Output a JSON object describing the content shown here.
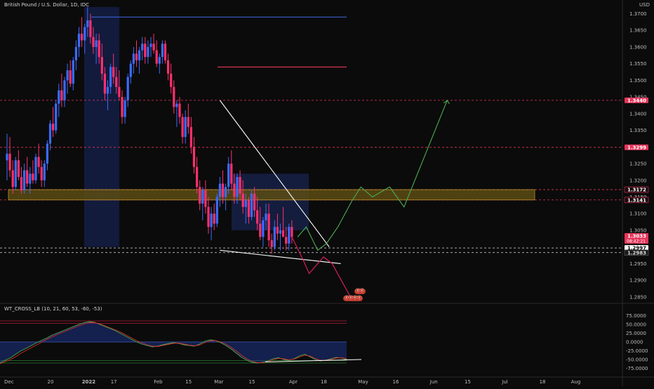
{
  "header": {
    "title": "British Pound / U.S. Dollar, 1D, IDC",
    "currency": "USD"
  },
  "indicator": {
    "title": "WT_CROSS_LB (10, 21, 60, 53, -60, -53)"
  },
  "colors": {
    "bg": "#0b0b0b",
    "up": "#3b6bff",
    "down": "#ff2f6e",
    "neutral": "#e7e352",
    "accent_green": "#4caf50",
    "accent_red": "#e91e63",
    "level_red": "#e5355a",
    "zone_fill": "#5b4c14",
    "white": "#ffffff"
  },
  "price_axis": {
    "ticks": [
      "1.3700",
      "1.3650",
      "1.3600",
      "1.3550",
      "1.3500",
      "1.3450",
      "1.3400",
      "1.3350",
      "1.3300",
      "1.3250",
      "1.3200",
      "1.3150",
      "1.3100",
      "1.3050",
      "1.3000",
      "1.2950",
      "1.2900",
      "1.2850"
    ],
    "min": 1.2835,
    "max": 1.372,
    "labels": [
      {
        "value": 1.344,
        "text": "1.3440",
        "style": "red"
      },
      {
        "value": 1.3299,
        "text": "1.3299",
        "style": "red"
      },
      {
        "value": 1.3172,
        "text": "1.3172",
        "style": "red-outline"
      },
      {
        "value": 1.3141,
        "text": "1.3141",
        "style": "red-outline"
      },
      {
        "value": 1.3033,
        "text": "1.3033",
        "style": "red",
        "sub": "08:42:21"
      },
      {
        "value": 1.2997,
        "text": "1.2997",
        "style": "white"
      },
      {
        "value": 1.2983,
        "text": "1.2983",
        "style": "dark"
      }
    ]
  },
  "osc_axis": {
    "ticks": [
      "75.0000",
      "50.0000",
      "25.0000",
      "0.0000",
      "-25.0000",
      "-50.0000",
      "-75.0000"
    ],
    "min": -82,
    "max": 82
  },
  "time_axis": {
    "labels": [
      {
        "day": 0,
        "text": "Dec"
      },
      {
        "day": 15,
        "text": "20"
      },
      {
        "day": 27,
        "text": "2022"
      },
      {
        "day": 37,
        "text": "17"
      },
      {
        "day": 52,
        "text": "Feb"
      },
      {
        "day": 63,
        "text": "15"
      },
      {
        "day": 73,
        "text": "Mar"
      },
      {
        "day": 85,
        "text": "15"
      },
      {
        "day": 99,
        "text": "Apr"
      },
      {
        "day": 110,
        "text": "18"
      },
      {
        "day": 123,
        "text": "May"
      },
      {
        "day": 135,
        "text": "16"
      },
      {
        "day": 148,
        "text": "Jun"
      },
      {
        "day": 160,
        "text": "15"
      },
      {
        "day": 173,
        "text": "Jul"
      },
      {
        "day": 186,
        "text": "18"
      },
      {
        "day": 197,
        "text": "Aug"
      }
    ]
  },
  "chart_data": {
    "type": "candlestick",
    "levels": [
      1.344,
      1.3299,
      1.3172,
      1.3141
    ],
    "zone": [
      1.3141,
      1.3172
    ],
    "support_lines": [
      1.2997,
      1.2983
    ],
    "candles": [
      [
        1.326,
        1.334,
        1.32,
        1.328
      ],
      [
        1.328,
        1.333,
        1.321,
        1.323
      ],
      [
        1.323,
        1.326,
        1.316,
        1.318
      ],
      [
        1.318,
        1.327,
        1.317,
        1.326
      ],
      [
        1.326,
        1.329,
        1.32,
        1.321
      ],
      [
        1.321,
        1.324,
        1.316,
        1.317
      ],
      [
        1.317,
        1.325,
        1.316,
        1.323
      ],
      [
        1.323,
        1.327,
        1.318,
        1.319
      ],
      [
        1.319,
        1.324,
        1.316,
        1.322
      ],
      [
        1.322,
        1.326,
        1.319,
        1.32
      ],
      [
        1.32,
        1.328,
        1.319,
        1.327
      ],
      [
        1.327,
        1.331,
        1.322,
        1.324
      ],
      [
        1.324,
        1.326,
        1.318,
        1.32
      ],
      [
        1.32,
        1.326,
        1.318,
        1.325
      ],
      [
        1.325,
        1.332,
        1.323,
        1.331
      ],
      [
        1.331,
        1.338,
        1.329,
        1.337
      ],
      [
        1.337,
        1.342,
        1.333,
        1.335
      ],
      [
        1.335,
        1.344,
        1.334,
        1.343
      ],
      [
        1.343,
        1.349,
        1.339,
        1.347
      ],
      [
        1.347,
        1.352,
        1.342,
        1.344
      ],
      [
        1.344,
        1.351,
        1.342,
        1.35
      ],
      [
        1.35,
        1.355,
        1.346,
        1.353
      ],
      [
        1.353,
        1.356,
        1.348,
        1.349
      ],
      [
        1.349,
        1.357,
        1.347,
        1.356
      ],
      [
        1.356,
        1.362,
        1.353,
        1.36
      ],
      [
        1.36,
        1.366,
        1.357,
        1.364
      ],
      [
        1.364,
        1.369,
        1.36,
        1.362
      ],
      [
        1.362,
        1.367,
        1.358,
        1.366
      ],
      [
        1.366,
        1.372,
        1.363,
        1.368
      ],
      [
        1.368,
        1.37,
        1.361,
        1.363
      ],
      [
        1.363,
        1.366,
        1.358,
        1.36
      ],
      [
        1.36,
        1.364,
        1.355,
        1.362
      ],
      [
        1.362,
        1.364,
        1.355,
        1.357
      ],
      [
        1.357,
        1.361,
        1.35,
        1.352
      ],
      [
        1.352,
        1.354,
        1.344,
        1.346
      ],
      [
        1.346,
        1.35,
        1.341,
        1.348
      ],
      [
        1.348,
        1.355,
        1.346,
        1.354
      ],
      [
        1.354,
        1.358,
        1.349,
        1.351
      ],
      [
        1.351,
        1.354,
        1.346,
        1.348
      ],
      [
        1.348,
        1.353,
        1.344,
        1.345
      ],
      [
        1.345,
        1.347,
        1.337,
        1.339
      ],
      [
        1.339,
        1.345,
        1.337,
        1.344
      ],
      [
        1.344,
        1.352,
        1.342,
        1.351
      ],
      [
        1.351,
        1.356,
        1.349,
        1.355
      ],
      [
        1.355,
        1.36,
        1.352,
        1.358
      ],
      [
        1.358,
        1.362,
        1.354,
        1.356
      ],
      [
        1.356,
        1.36,
        1.352,
        1.359
      ],
      [
        1.359,
        1.363,
        1.356,
        1.361
      ],
      [
        1.361,
        1.363,
        1.355,
        1.357
      ],
      [
        1.357,
        1.362,
        1.355,
        1.36
      ],
      [
        1.36,
        1.363,
        1.357,
        1.361
      ],
      [
        1.361,
        1.364,
        1.358,
        1.359
      ],
      [
        1.359,
        1.362,
        1.354,
        1.355
      ],
      [
        1.355,
        1.358,
        1.352,
        1.357
      ],
      [
        1.357,
        1.362,
        1.355,
        1.361
      ],
      [
        1.361,
        1.362,
        1.355,
        1.356
      ],
      [
        1.356,
        1.358,
        1.35,
        1.352
      ],
      [
        1.352,
        1.355,
        1.346,
        1.348
      ],
      [
        1.348,
        1.35,
        1.34,
        1.342
      ],
      [
        1.342,
        1.344,
        1.336,
        1.343
      ],
      [
        1.343,
        1.345,
        1.337,
        1.339
      ],
      [
        1.339,
        1.34,
        1.331,
        1.333
      ],
      [
        1.333,
        1.341,
        1.331,
        1.339
      ],
      [
        1.339,
        1.343,
        1.334,
        1.336
      ],
      [
        1.336,
        1.339,
        1.328,
        1.33
      ],
      [
        1.33,
        1.333,
        1.322,
        1.324
      ],
      [
        1.324,
        1.327,
        1.316,
        1.318
      ],
      [
        1.318,
        1.32,
        1.311,
        1.313
      ],
      [
        1.313,
        1.318,
        1.308,
        1.317
      ],
      [
        1.317,
        1.32,
        1.31,
        1.312
      ],
      [
        1.312,
        1.315,
        1.304,
        1.306
      ],
      [
        1.306,
        1.312,
        1.302,
        1.31
      ],
      [
        1.31,
        1.313,
        1.305,
        1.307
      ],
      [
        1.307,
        1.316,
        1.306,
        1.315
      ],
      [
        1.315,
        1.321,
        1.312,
        1.319
      ],
      [
        1.319,
        1.323,
        1.313,
        1.315
      ],
      [
        1.315,
        1.319,
        1.311,
        1.318
      ],
      [
        1.318,
        1.327,
        1.316,
        1.325
      ],
      [
        1.325,
        1.329,
        1.317,
        1.319
      ],
      [
        1.319,
        1.322,
        1.313,
        1.315
      ],
      [
        1.315,
        1.322,
        1.313,
        1.321
      ],
      [
        1.321,
        1.323,
        1.314,
        1.316
      ],
      [
        1.316,
        1.32,
        1.31,
        1.312
      ],
      [
        1.312,
        1.316,
        1.307,
        1.314
      ],
      [
        1.314,
        1.315,
        1.307,
        1.309
      ],
      [
        1.309,
        1.317,
        1.308,
        1.316
      ],
      [
        1.316,
        1.318,
        1.309,
        1.311
      ],
      [
        1.311,
        1.315,
        1.305,
        1.307
      ],
      [
        1.307,
        1.312,
        1.302,
        1.303
      ],
      [
        1.303,
        1.309,
        1.3,
        1.308
      ],
      [
        1.308,
        1.313,
        1.305,
        1.31
      ],
      [
        1.31,
        1.313,
        1.3,
        1.302
      ],
      [
        1.302,
        1.304,
        1.298,
        1.3
      ],
      [
        1.3,
        1.308,
        1.299,
        1.306
      ],
      [
        1.306,
        1.31,
        1.302,
        1.304
      ],
      [
        1.304,
        1.307,
        1.299,
        1.305
      ],
      [
        1.305,
        1.312,
        1.303,
        1.303
      ],
      [
        1.303,
        1.306,
        1.299,
        1.301
      ],
      [
        1.301,
        1.307,
        1.299,
        1.306
      ],
      [
        1.306,
        1.308,
        1.301,
        1.303
      ]
    ],
    "projection_green": [
      [
        101,
        1.303
      ],
      [
        104,
        1.306
      ],
      [
        108,
        1.299
      ],
      [
        111,
        1.301
      ],
      [
        115,
        1.306
      ],
      [
        120,
        1.314
      ],
      [
        123,
        1.318
      ],
      [
        127,
        1.315
      ],
      [
        133,
        1.318
      ],
      [
        138,
        1.312
      ],
      [
        153,
        1.344
      ]
    ],
    "projection_red": [
      [
        99,
        1.303
      ],
      [
        103,
        1.296
      ],
      [
        105,
        1.292
      ],
      [
        110,
        1.297
      ],
      [
        113,
        1.295
      ],
      [
        120,
        1.284
      ]
    ],
    "triangle": {
      "upper": [
        [
          74,
          1.344
        ],
        [
          112,
          1.3
        ]
      ],
      "lower": [
        [
          74,
          1.299
        ],
        [
          116,
          1.295
        ]
      ]
    },
    "wt1": [
      -60,
      -52,
      -45,
      -35,
      -25,
      -18,
      -10,
      -2,
      5,
      12,
      20,
      26,
      32,
      38,
      44,
      50,
      55,
      58,
      56,
      50,
      44,
      38,
      32,
      24,
      16,
      8,
      0,
      -6,
      -10,
      -14,
      -12,
      -8,
      -5,
      -2,
      -4,
      -8,
      -10,
      -12,
      -6,
      2,
      6,
      4,
      -2,
      -10,
      -20,
      -32,
      -44,
      -52,
      -58,
      -60,
      -58,
      -54,
      -48,
      -45,
      -50,
      -52,
      -48,
      -40,
      -35,
      -42,
      -50,
      -54,
      -52,
      -48,
      -44,
      -46,
      -50
    ],
    "wt2": [
      -62,
      -56,
      -50,
      -42,
      -32,
      -24,
      -16,
      -8,
      0,
      8,
      15,
      22,
      28,
      34,
      40,
      46,
      51,
      55,
      55,
      52,
      46,
      40,
      34,
      28,
      20,
      12,
      4,
      -2,
      -8,
      -12,
      -13,
      -10,
      -7,
      -4,
      -3,
      -6,
      -9,
      -11,
      -9,
      -2,
      3,
      4,
      0,
      -6,
      -15,
      -26,
      -38,
      -48,
      -55,
      -59,
      -59,
      -56,
      -51,
      -47,
      -48,
      -51,
      -49,
      -43,
      -38,
      -40,
      -47,
      -52,
      -53,
      -50,
      -46,
      -45,
      -48
    ]
  },
  "badges": [
    {
      "text": "ⓔⓔ"
    },
    {
      "text": "ⓔⓔⓔⓔ"
    }
  ]
}
